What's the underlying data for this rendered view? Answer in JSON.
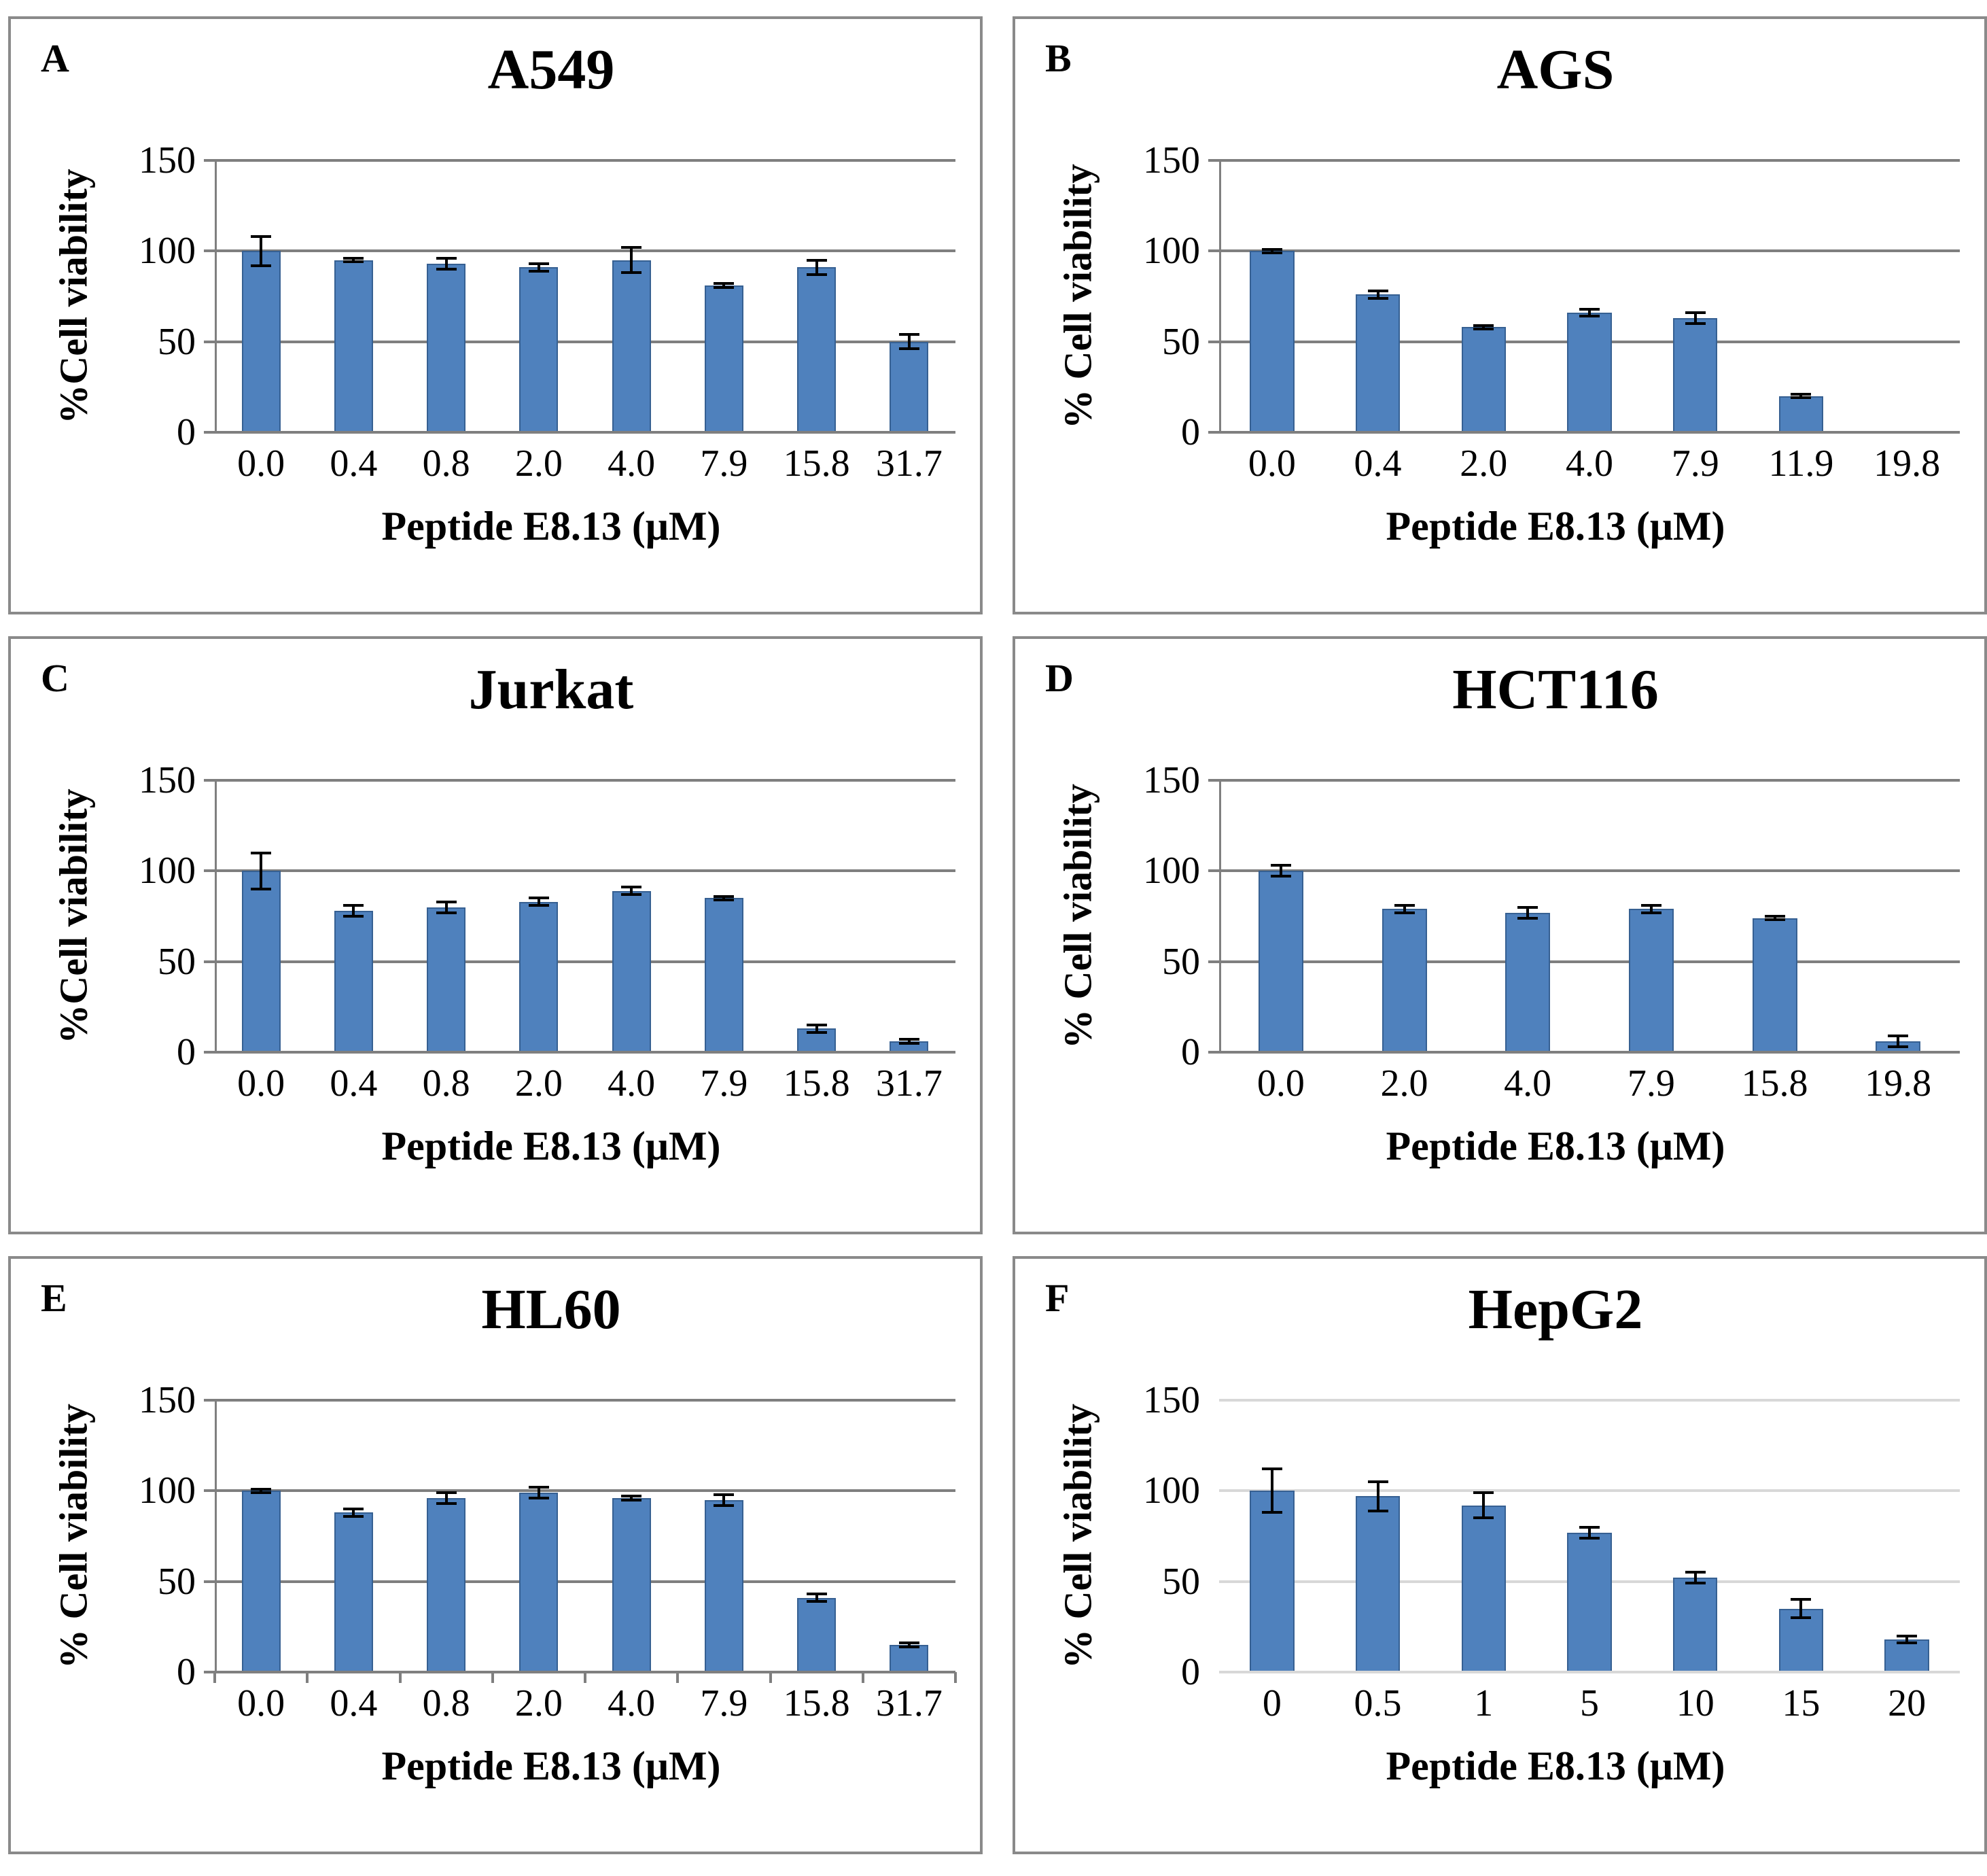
{
  "figure_background": "#ffffff",
  "panel_border_color": "#8a8a8a",
  "chart_data": [
    {
      "type": "bar",
      "panel_label": "A",
      "title": "A549",
      "ylabel": "%Cell viability",
      "xlabel": "Peptide E8.13 (μM)",
      "categories": [
        "0.0",
        "0.4",
        "0.8",
        "2.0",
        "4.0",
        "7.9",
        "15.8",
        "31.7"
      ],
      "values": [
        100,
        95,
        93,
        91,
        95,
        81,
        91,
        50
      ],
      "errors": [
        8,
        1,
        3,
        2,
        7,
        1,
        4,
        4
      ],
      "yticks": [
        0,
        50,
        100,
        150
      ],
      "ylim": [
        0,
        150
      ],
      "grid": true,
      "legend": "none",
      "gridline_color": "#7f7f7f",
      "axis_line": true,
      "x_axis_ticks": false,
      "bar_color": "#4f81bd",
      "bar_border_color": "#366092",
      "error_bar_color": "#000000"
    },
    {
      "type": "bar",
      "panel_label": "B",
      "title": "AGS",
      "ylabel": "% Cell viability",
      "xlabel": "Peptide E8.13 (μM)",
      "categories": [
        "0.0",
        "0.4",
        "2.0",
        "4.0",
        "7.9",
        "11.9",
        "19.8"
      ],
      "values": [
        100,
        76,
        58,
        66,
        63,
        20,
        0
      ],
      "errors": [
        1,
        2,
        1,
        2,
        3,
        1,
        0
      ],
      "yticks": [
        0,
        50,
        100,
        150
      ],
      "ylim": [
        0,
        150
      ],
      "grid": true,
      "legend": "none",
      "gridline_color": "#7f7f7f",
      "axis_line": true,
      "x_axis_ticks": false,
      "bar_color": "#4f81bd",
      "bar_border_color": "#366092",
      "error_bar_color": "#000000"
    },
    {
      "type": "bar",
      "panel_label": "C",
      "title": "Jurkat",
      "ylabel": "%Cell viability",
      "xlabel": "Peptide E8.13 (μM)",
      "categories": [
        "0.0",
        "0.4",
        "0.8",
        "2.0",
        "4.0",
        "7.9",
        "15.8",
        "31.7"
      ],
      "values": [
        100,
        78,
        80,
        83,
        89,
        85,
        13,
        6
      ],
      "errors": [
        10,
        3,
        3,
        2,
        2,
        1,
        2,
        1
      ],
      "yticks": [
        0,
        50,
        100,
        150
      ],
      "ylim": [
        0,
        150
      ],
      "grid": true,
      "legend": "none",
      "gridline_color": "#7f7f7f",
      "axis_line": true,
      "x_axis_ticks": false,
      "bar_color": "#4f81bd",
      "bar_border_color": "#366092",
      "error_bar_color": "#000000"
    },
    {
      "type": "bar",
      "panel_label": "D",
      "title": "HCT116",
      "ylabel": "% Cell viability",
      "xlabel": "Peptide E8.13 (μM)",
      "categories": [
        "0.0",
        "2.0",
        "4.0",
        "7.9",
        "15.8",
        "19.8"
      ],
      "values": [
        100,
        79,
        77,
        79,
        74,
        6
      ],
      "errors": [
        3,
        2,
        3,
        2,
        1,
        3
      ],
      "yticks": [
        0,
        50,
        100,
        150
      ],
      "ylim": [
        0,
        150
      ],
      "grid": true,
      "legend": "none",
      "gridline_color": "#7f7f7f",
      "axis_line": true,
      "x_axis_ticks": false,
      "bar_color": "#4f81bd",
      "bar_border_color": "#366092",
      "error_bar_color": "#000000"
    },
    {
      "type": "bar",
      "panel_label": "E",
      "title": "HL60",
      "ylabel": "% Cell viability",
      "xlabel": "Peptide E8.13 (μM)",
      "categories": [
        "0.0",
        "0.4",
        "0.8",
        "2.0",
        "4.0",
        "7.9",
        "15.8",
        "31.7"
      ],
      "values": [
        100,
        88,
        96,
        99,
        96,
        95,
        41,
        15
      ],
      "errors": [
        1,
        2,
        3,
        3,
        1,
        3,
        2,
        1
      ],
      "yticks": [
        0,
        50,
        100,
        150
      ],
      "ylim": [
        0,
        150
      ],
      "grid": true,
      "legend": "none",
      "gridline_color": "#7f7f7f",
      "axis_line": true,
      "x_axis_ticks": true,
      "bar_color": "#4f81bd",
      "bar_border_color": "#366092",
      "error_bar_color": "#000000"
    },
    {
      "type": "bar",
      "panel_label": "F",
      "title": "HepG2",
      "ylabel": "% Cell viability",
      "xlabel": "Peptide E8.13 (μM)",
      "categories": [
        "0",
        "0.5",
        "1",
        "5",
        "10",
        "15",
        "20"
      ],
      "values": [
        100,
        97,
        92,
        77,
        52,
        35,
        18
      ],
      "errors": [
        12,
        8,
        7,
        3,
        3,
        5,
        2
      ],
      "yticks": [
        0,
        50,
        100,
        150
      ],
      "ylim": [
        0,
        150
      ],
      "grid": true,
      "legend": "none",
      "gridline_color": "#d8d8d8",
      "axis_line": false,
      "x_axis_ticks": false,
      "bar_color": "#4f81bd",
      "bar_border_color": "#366092",
      "error_bar_color": "#000000"
    }
  ]
}
